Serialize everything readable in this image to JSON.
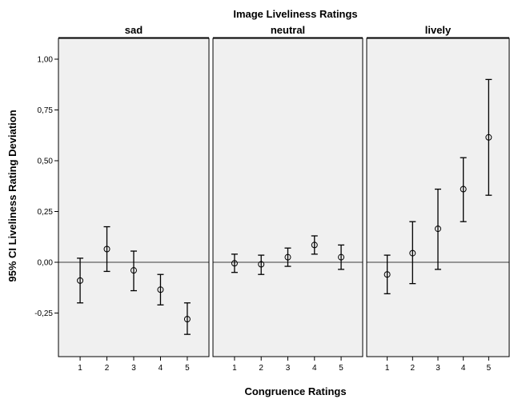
{
  "chart_data": {
    "type": "scatter",
    "title": "Image Liveliness Ratings",
    "xlabel": "Congruence Ratings",
    "ylabel": "95% CI Liveliness Rating Deviation",
    "ylim": [
      -0.5,
      1.1
    ],
    "y_ticks": [
      {
        "value": 1.0,
        "label": "1,00"
      },
      {
        "value": 0.75,
        "label": "0,75"
      },
      {
        "value": 0.5,
        "label": "0,50"
      },
      {
        "value": 0.25,
        "label": "0,25"
      },
      {
        "value": 0.0,
        "label": "0,00"
      },
      {
        "value": -0.25,
        "label": "-0,25"
      }
    ],
    "x": [
      1,
      2,
      3,
      4,
      5
    ],
    "reference_line": 0,
    "panels": [
      {
        "name": "sad",
        "mean": [
          -0.09,
          0.065,
          -0.04,
          -0.135,
          -0.28
        ],
        "lower": [
          -0.2,
          -0.045,
          -0.14,
          -0.21,
          -0.355
        ],
        "upper": [
          0.02,
          0.175,
          0.055,
          -0.06,
          -0.2
        ]
      },
      {
        "name": "neutral",
        "mean": [
          -0.005,
          -0.01,
          0.025,
          0.085,
          0.025
        ],
        "lower": [
          -0.05,
          -0.06,
          -0.02,
          0.04,
          -0.035
        ],
        "upper": [
          0.04,
          0.035,
          0.07,
          0.13,
          0.085
        ]
      },
      {
        "name": "lively",
        "mean": [
          -0.06,
          0.045,
          0.165,
          0.36,
          0.615
        ],
        "lower": [
          -0.155,
          -0.105,
          -0.035,
          0.2,
          0.33
        ],
        "upper": [
          0.035,
          0.2,
          0.36,
          0.515,
          0.9
        ]
      }
    ]
  }
}
